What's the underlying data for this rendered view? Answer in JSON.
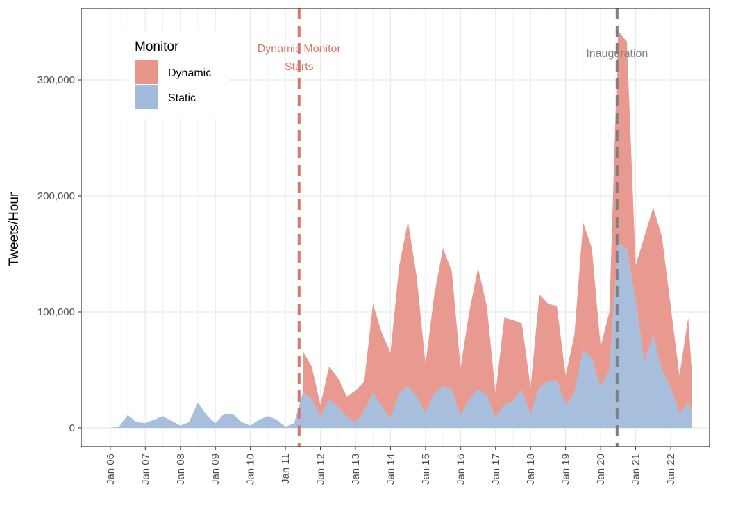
{
  "chart_data": {
    "type": "area",
    "stacked": true,
    "y_label": "Tweets/Hour",
    "legend_title": "Monitor",
    "legend_position": "top-left",
    "grid": true,
    "x": [
      6.0,
      6.25,
      6.5,
      6.75,
      7.0,
      7.25,
      7.5,
      7.75,
      8.0,
      8.25,
      8.5,
      8.75,
      9.0,
      9.25,
      9.5,
      9.75,
      10.0,
      10.25,
      10.5,
      10.75,
      11.0,
      11.25,
      11.5,
      11.75,
      12.0,
      12.25,
      12.5,
      12.75,
      13.0,
      13.25,
      13.5,
      13.75,
      14.0,
      14.25,
      14.5,
      14.75,
      15.0,
      15.25,
      15.5,
      15.75,
      16.0,
      16.25,
      16.5,
      16.75,
      17.0,
      17.25,
      17.5,
      17.75,
      18.0,
      18.25,
      18.5,
      18.75,
      19.0,
      19.25,
      19.5,
      19.75,
      20.0,
      20.25,
      20.5,
      20.75,
      21.0,
      21.25,
      21.5,
      21.75,
      22.0,
      22.25,
      22.5,
      22.6
    ],
    "series": [
      {
        "name": "Dynamic",
        "color": "#e8958a",
        "values": [
          null,
          null,
          null,
          null,
          null,
          null,
          null,
          null,
          null,
          null,
          null,
          null,
          null,
          null,
          null,
          null,
          null,
          null,
          null,
          null,
          null,
          null,
          35000,
          28000,
          10000,
          28000,
          25000,
          17000,
          28000,
          25000,
          77000,
          63000,
          57000,
          110000,
          142000,
          103000,
          42000,
          85000,
          119000,
          102000,
          41000,
          75000,
          105000,
          77000,
          21000,
          75000,
          70000,
          57000,
          23000,
          80000,
          67000,
          64000,
          25000,
          50000,
          109000,
          95000,
          35000,
          50000,
          182000,
          179000,
          30000,
          108000,
          110000,
          115000,
          70000,
          32000,
          73000,
          35000
        ]
      },
      {
        "name": "Static",
        "color": "#a2bcdb",
        "values": [
          0,
          1000,
          11000,
          5000,
          4000,
          7000,
          10000,
          6000,
          2000,
          5000,
          22000,
          11000,
          4000,
          12000,
          12000,
          5000,
          2000,
          7000,
          10000,
          7000,
          1000,
          4000,
          31000,
          25000,
          10000,
          25000,
          18000,
          10000,
          4000,
          15000,
          30000,
          19000,
          8000,
          30000,
          36000,
          27000,
          13000,
          30000,
          36000,
          33000,
          11000,
          25000,
          33000,
          28000,
          9000,
          20000,
          23000,
          33000,
          12000,
          35000,
          40000,
          41000,
          20000,
          30000,
          68000,
          60000,
          35000,
          50000,
          160000,
          154000,
          110000,
          57000,
          80000,
          50000,
          35000,
          13000,
          22000,
          15000
        ]
      }
    ],
    "xlim": [
      5.17,
      23.11
    ],
    "xticks": [
      {
        "value": 6,
        "label": "Jan 06"
      },
      {
        "value": 7,
        "label": "Jan 07"
      },
      {
        "value": 8,
        "label": "Jan 08"
      },
      {
        "value": 9,
        "label": "Jan 09"
      },
      {
        "value": 10,
        "label": "Jan 10"
      },
      {
        "value": 11,
        "label": "Jan 11"
      },
      {
        "value": 12,
        "label": "Jan 12"
      },
      {
        "value": 13,
        "label": "Jan 13"
      },
      {
        "value": 14,
        "label": "Jan 14"
      },
      {
        "value": 15,
        "label": "Jan 15"
      },
      {
        "value": 16,
        "label": "Jan 16"
      },
      {
        "value": 17,
        "label": "Jan 17"
      },
      {
        "value": 18,
        "label": "Jan 18"
      },
      {
        "value": 19,
        "label": "Jan 19"
      },
      {
        "value": 20,
        "label": "Jan 20"
      },
      {
        "value": 21,
        "label": "Jan 21"
      },
      {
        "value": 22,
        "label": "Jan 22"
      }
    ],
    "ylim": [
      -16200,
      361700
    ],
    "yticks": [
      0,
      {
        "value": 100000,
        "label": "100,000"
      },
      {
        "value": 200000,
        "label": "200,000"
      },
      {
        "value": 300000,
        "label": "300,000"
      }
    ],
    "annotations": [
      {
        "x": 11.39,
        "lines": [
          "Dynamic Monitor",
          "Starts"
        ],
        "color": "#d9766b"
      },
      {
        "x": 20.47,
        "lines": [
          "Inauguration"
        ],
        "color": "#7f7f7f"
      }
    ]
  }
}
